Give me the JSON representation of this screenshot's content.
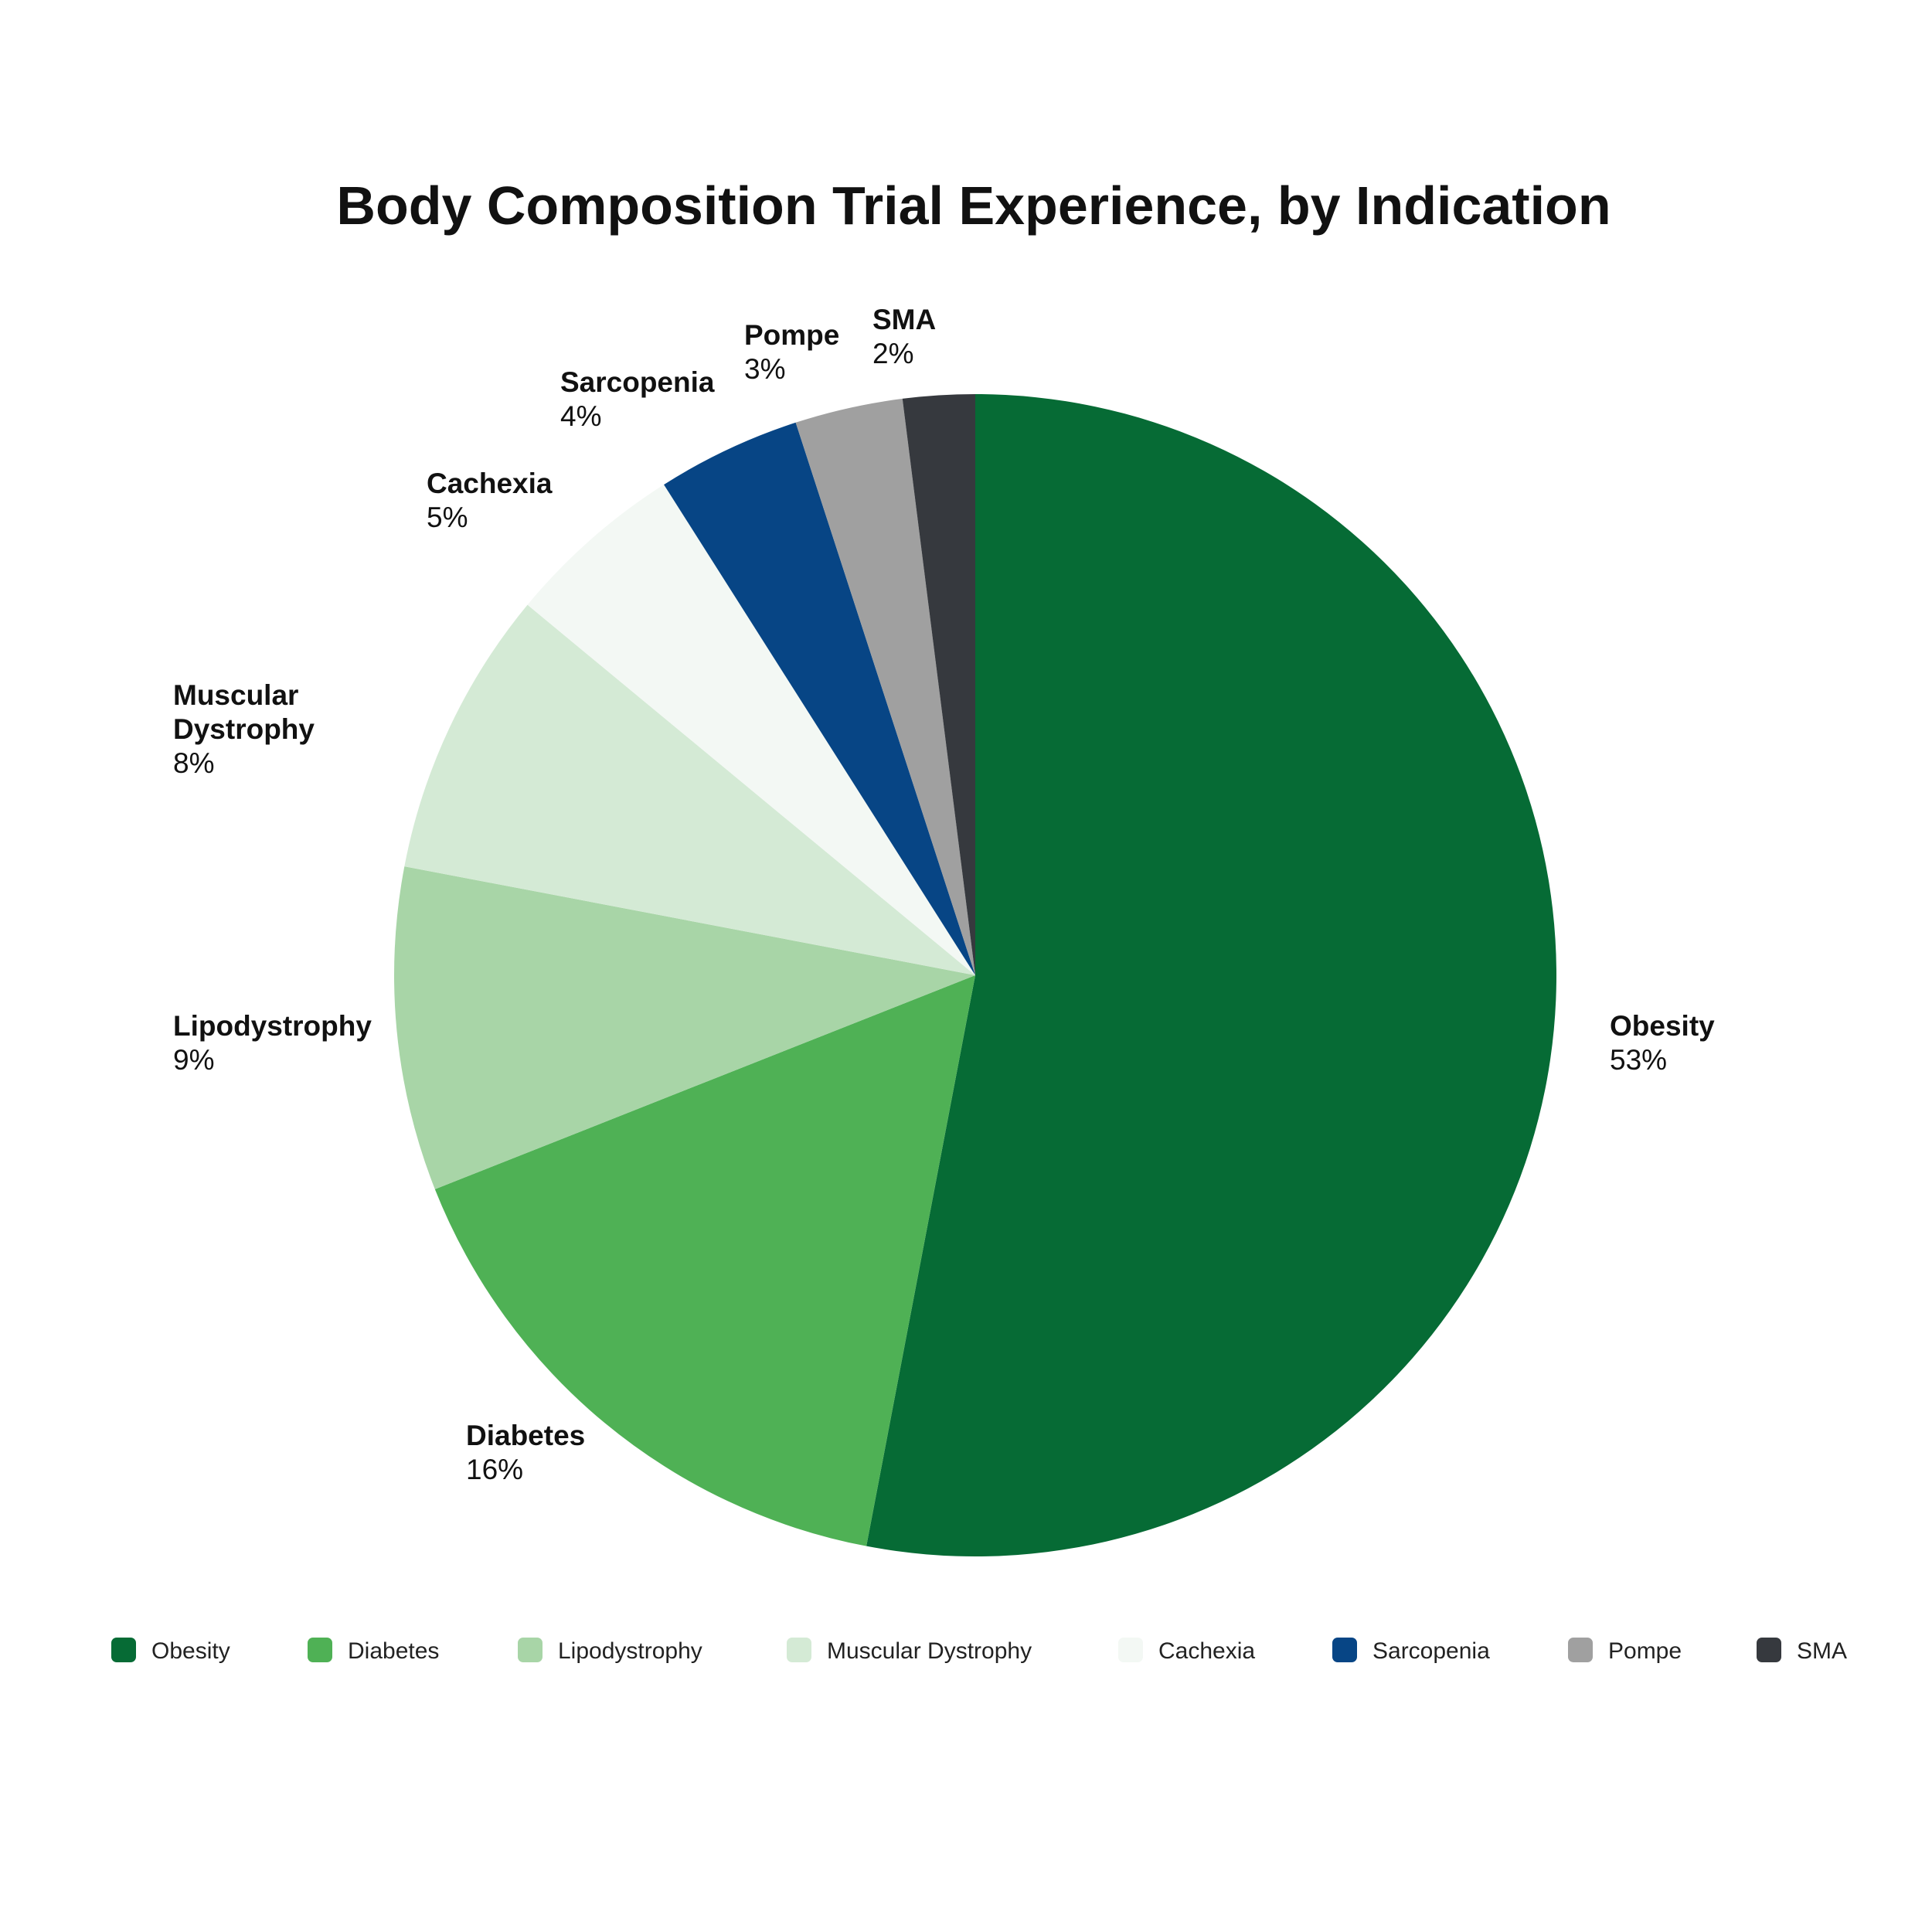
{
  "chart_data": {
    "type": "pie",
    "title": "Body Composition Trial Experience, by Indication",
    "start_position": "12 o'clock",
    "direction": "clockwise",
    "legend_placement": "bottom",
    "slices": [
      {
        "label": "Obesity",
        "label_lines": [
          "Obesity"
        ],
        "value": 53,
        "value_label": "53%",
        "color": "#066b35"
      },
      {
        "label": "Diabetes",
        "label_lines": [
          "Diabetes"
        ],
        "value": 16,
        "value_label": "16%",
        "color": "#4fb155"
      },
      {
        "label": "Lipodystrophy",
        "label_lines": [
          "Lipodystrophy"
        ],
        "value": 9,
        "value_label": "9%",
        "color": "#a8d5a7"
      },
      {
        "label": "Muscular Dystrophy",
        "label_lines": [
          "Muscular",
          "Dystrophy"
        ],
        "value": 8,
        "value_label": "8%",
        "color": "#d4ead5"
      },
      {
        "label": "Cachexia",
        "label_lines": [
          "Cachexia"
        ],
        "value": 5,
        "value_label": "5%",
        "color": "#f3f8f4"
      },
      {
        "label": "Sarcopenia",
        "label_lines": [
          "Sarcopenia"
        ],
        "value": 4,
        "value_label": "4%",
        "color": "#074585"
      },
      {
        "label": "Pompe",
        "label_lines": [
          "Pompe"
        ],
        "value": 3,
        "value_label": "3%",
        "color": "#a0a0a0"
      },
      {
        "label": "SMA",
        "label_lines": [
          "SMA"
        ],
        "value": 2,
        "value_label": "2%",
        "color": "#36393e"
      }
    ]
  }
}
